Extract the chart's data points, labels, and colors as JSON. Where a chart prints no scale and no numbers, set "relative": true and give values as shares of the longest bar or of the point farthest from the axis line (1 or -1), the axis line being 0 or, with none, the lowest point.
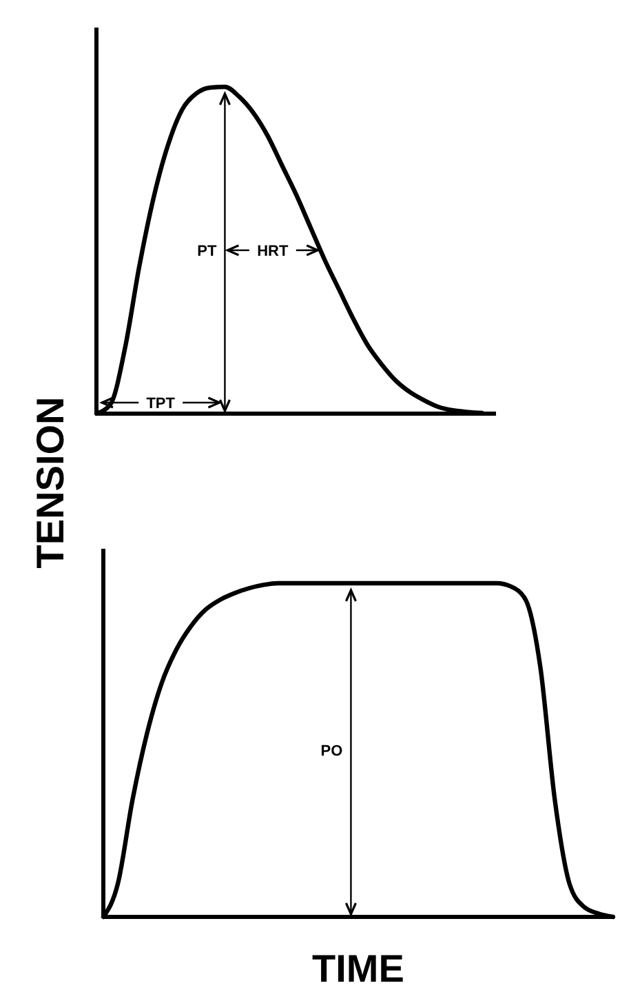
{
  "chart_data": [
    {
      "type": "line",
      "relative": true,
      "ylabel": "TENSION",
      "categories": [
        null,
        null,
        null,
        null,
        null,
        null,
        null,
        null,
        null,
        null,
        null,
        null,
        null,
        null,
        null,
        null,
        null,
        null,
        null,
        null,
        null,
        null,
        null,
        null,
        null,
        null,
        null,
        null,
        null
      ],
      "series": [
        {
          "color": "#000000",
          "values": [
            0,
            0.03,
            0.2,
            0.45,
            0.66,
            0.82,
            0.93,
            0.98,
            0.998,
            1,
            0.97,
            0.92,
            0.85,
            0.76,
            0.67,
            0.57,
            0.47,
            0.38,
            0.29,
            0.21,
            0.15,
            0.1,
            0.065,
            0.04,
            0.02,
            0.01,
            0.005,
            0.002,
            null
          ]
        }
      ],
      "annotations": [
        "PT",
        "HRT",
        "TPT"
      ],
      "marker": "none",
      "line_style": "solid"
    },
    {
      "type": "line",
      "relative": true,
      "xlabel": "TIME",
      "categories": [
        null,
        null,
        null,
        null,
        null,
        null,
        null,
        null,
        null,
        null,
        null,
        null,
        null,
        null,
        null,
        null,
        null,
        null,
        null,
        null,
        null,
        null,
        null,
        null,
        null,
        null,
        null,
        null,
        null,
        null,
        null,
        null,
        null,
        null,
        null,
        null
      ],
      "series": [
        {
          "color": "#000000",
          "values": [
            0,
            0.1,
            0.35,
            0.55,
            0.7,
            0.8,
            0.87,
            0.92,
            0.95,
            0.97,
            0.985,
            0.995,
            1,
            1,
            1,
            1,
            1,
            1,
            1,
            1,
            1,
            1,
            1,
            1,
            1,
            1,
            1,
            1,
            0.99,
            0.95,
            0.75,
            0.35,
            0.1,
            0.03,
            0.01,
            0
          ]
        }
      ],
      "annotations": [
        "PO"
      ],
      "marker": "none",
      "line_style": "solid"
    }
  ]
}
